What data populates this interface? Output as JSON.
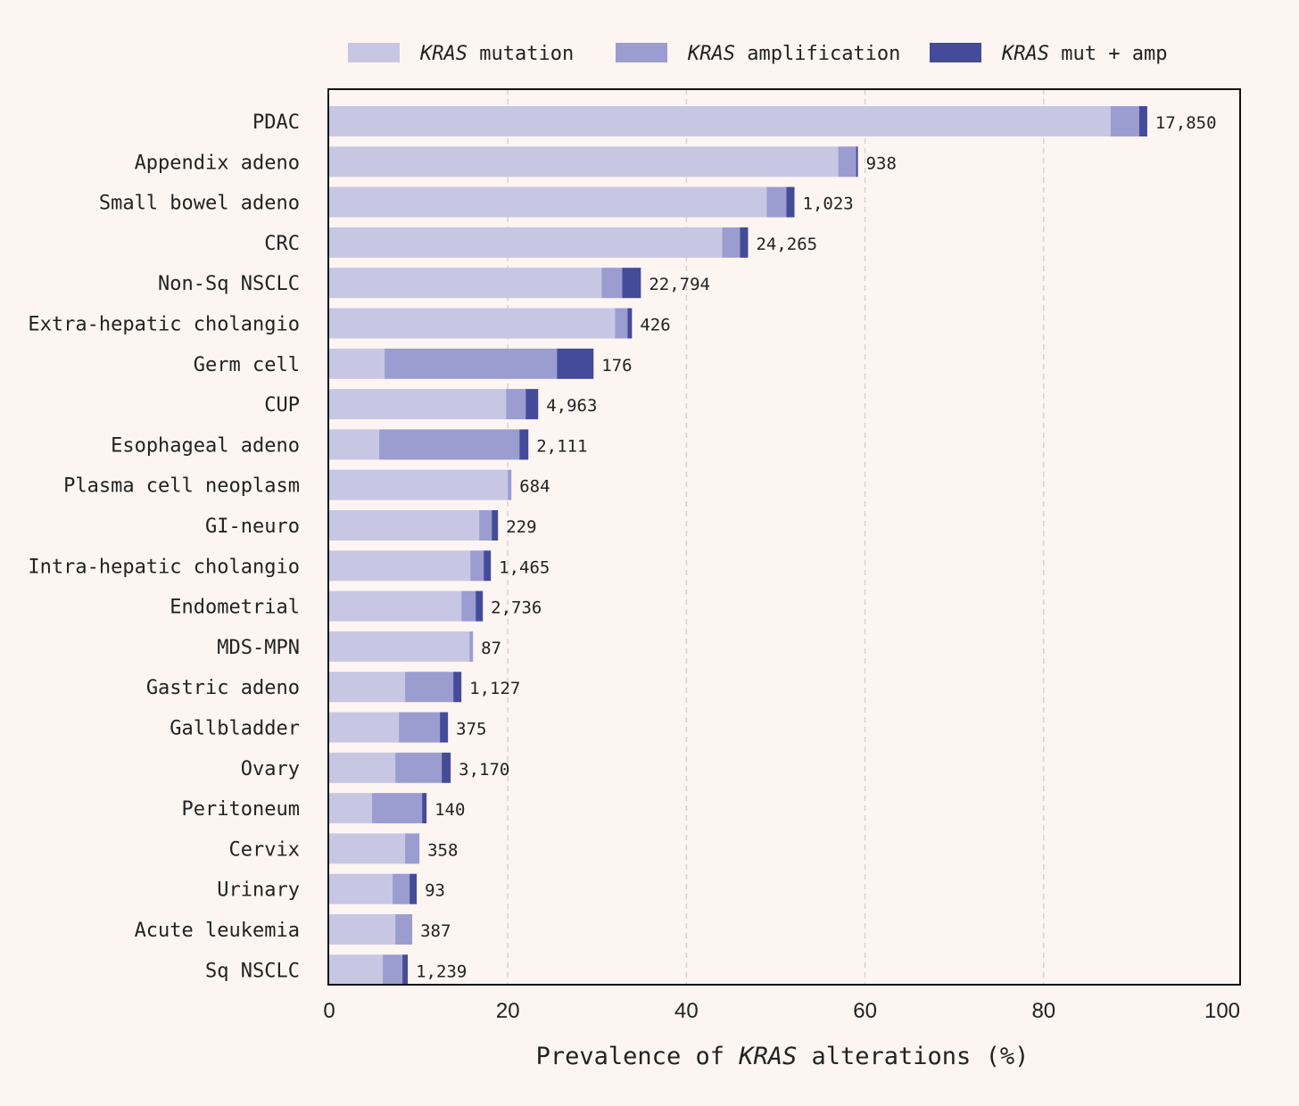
{
  "chart_data": {
    "type": "bar",
    "orientation": "horizontal",
    "stacked": true,
    "legend": {
      "placement": "top",
      "entries": [
        {
          "series": "mutation",
          "italic": "KRAS",
          "rest": "mutation"
        },
        {
          "series": "amplification",
          "italic": "KRAS",
          "rest": "amplification"
        },
        {
          "series": "mut_amp",
          "italic": "KRAS",
          "rest": "mut + amp"
        }
      ]
    },
    "xlabel": {
      "before": "Prevalence of",
      "italic": "KRAS",
      "after": "alterations (%)"
    },
    "xlim": [
      0,
      100
    ],
    "xticks": [
      "0",
      "20",
      "40",
      "60",
      "80",
      "100"
    ],
    "grid": "vertical dashed",
    "colors": {
      "mutation": "#c7c7e4",
      "amplification": "#9b9dd0",
      "mut_amp": "#444b99",
      "background": "#fcf5f2",
      "grid": "#d8d2d0"
    },
    "categories": [
      "PDAC",
      "Appendix adeno",
      "Small bowel adeno",
      "CRC",
      "Non-Sq NSCLC",
      "Extra-hepatic cholangio",
      "Germ cell",
      "CUP",
      "Esophageal adeno",
      "Plasma cell neoplasm",
      "GI-neuro",
      "Intra-hepatic cholangio",
      "Endometrial",
      "MDS-MPN",
      "Gastric adeno",
      "Gallbladder",
      "Ovary",
      "Peritoneum",
      "Cervix",
      "Urinary",
      "Acute leukemia",
      "Sq NSCLC"
    ],
    "series": [
      {
        "name": "mutation",
        "values": [
          87.5,
          57.0,
          49.0,
          44.0,
          30.5,
          32.0,
          6.2,
          19.8,
          5.6,
          20.0,
          16.8,
          15.8,
          14.8,
          15.7,
          8.5,
          7.8,
          7.4,
          4.8,
          8.5,
          7.1,
          7.4,
          6.0
        ]
      },
      {
        "name": "amplification",
        "values": [
          3.2,
          2.0,
          2.2,
          2.0,
          2.3,
          1.4,
          19.3,
          2.2,
          15.7,
          0.4,
          1.4,
          1.5,
          1.6,
          0.4,
          5.4,
          4.6,
          5.2,
          5.6,
          1.6,
          1.9,
          1.9,
          2.2
        ]
      },
      {
        "name": "mut_amp",
        "values": [
          0.9,
          0.2,
          0.9,
          0.9,
          2.1,
          0.5,
          4.1,
          1.4,
          1.0,
          0.0,
          0.7,
          0.8,
          0.8,
          0.0,
          0.9,
          0.9,
          1.0,
          0.5,
          0.0,
          0.8,
          0.0,
          0.6
        ]
      }
    ],
    "n_labels": [
      "17,850",
      "938",
      "1,023",
      "24,265",
      "22,794",
      "426",
      "176",
      "4,963",
      "2,111",
      "684",
      "229",
      "1,465",
      "2,736",
      "87",
      "1,127",
      "375",
      "3,170",
      "140",
      "358",
      "93",
      "387",
      "1,239"
    ]
  }
}
